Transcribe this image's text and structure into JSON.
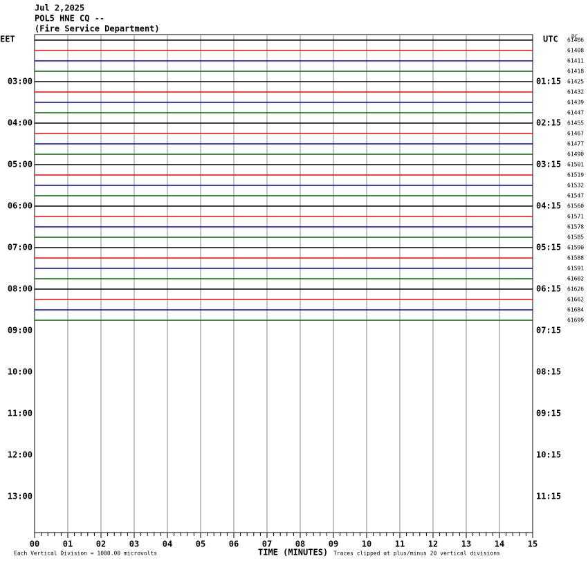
{
  "header": {
    "date": "Jul 2,2025",
    "station": "POL5 HNE CQ --",
    "agency": "(Fire Service Department)"
  },
  "left_axis": {
    "title": "EET",
    "labels": [
      "03:00",
      "04:00",
      "05:00",
      "06:00",
      "07:00",
      "08:00",
      "09:00",
      "10:00",
      "11:00",
      "12:00",
      "13:00"
    ]
  },
  "right_axis": {
    "title": "UTC",
    "labels": [
      "01:15",
      "02:15",
      "03:15",
      "04:15",
      "05:15",
      "06:15",
      "07:15",
      "08:15",
      "09:15",
      "10:15",
      "11:15"
    ],
    "dc_title": "DC"
  },
  "traces": {
    "colors": [
      "#000000",
      "#ff0000",
      "#0000cc",
      "#006600"
    ],
    "dc_labels": [
      "61406",
      "61408",
      "61411",
      "61418",
      "61425",
      "61432",
      "61439",
      "61447",
      "61455",
      "61467",
      "61477",
      "61490",
      "61501",
      "61519",
      "61532",
      "61547",
      "61560",
      "61571",
      "61578",
      "61585",
      "61590",
      "61588",
      "61591",
      "61602",
      "61626",
      "61662",
      "61684",
      "61699"
    ]
  },
  "x_axis": {
    "title": "TIME (MINUTES)",
    "labels": [
      "00",
      "01",
      "02",
      "03",
      "04",
      "05",
      "06",
      "07",
      "08",
      "09",
      "10",
      "11",
      "12",
      "13",
      "14",
      "15"
    ]
  },
  "footer": {
    "scale": "Each Vertical Division = 1000.00 microvolts",
    "clip": "Traces clipped at plus/minus 20 vertical divisions"
  }
}
